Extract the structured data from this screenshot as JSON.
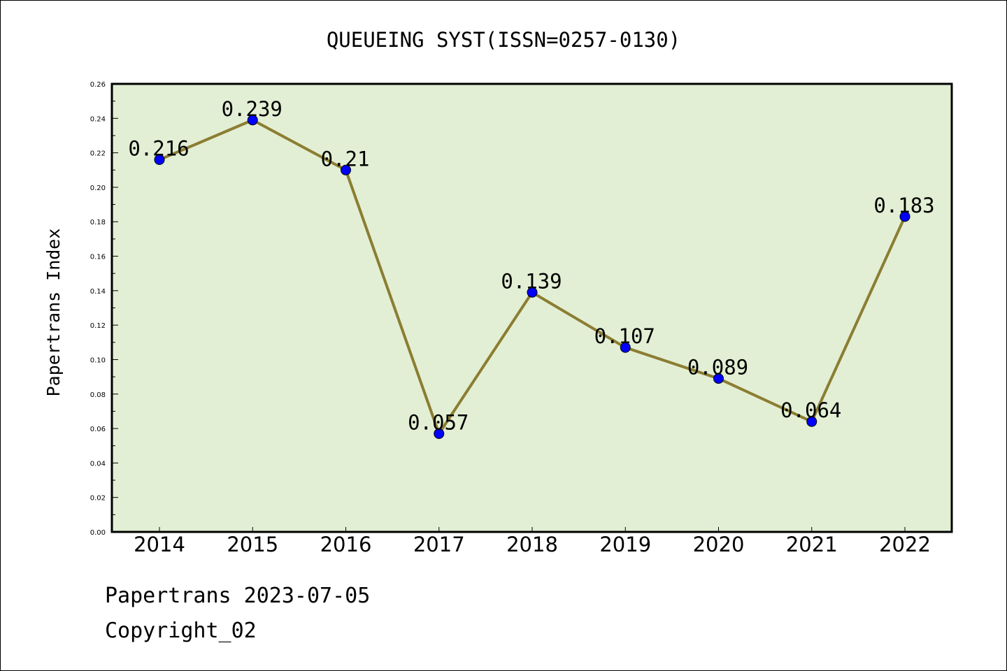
{
  "chart_data": {
    "type": "line",
    "title": "QUEUEING SYST(ISSN=0257-0130)",
    "xlabel": "",
    "ylabel": "Papertrans Index",
    "categories": [
      "2014",
      "2015",
      "2016",
      "2017",
      "2018",
      "2019",
      "2020",
      "2021",
      "2022"
    ],
    "series": [
      {
        "values": [
          0.216,
          0.239,
          0.21,
          0.057,
          0.139,
          0.107,
          0.089,
          0.064,
          0.183
        ]
      }
    ],
    "data_labels": [
      "0.216",
      "0.239",
      "0.21",
      "0.057",
      "0.139",
      "0.107",
      "0.089",
      "0.064",
      "0.183"
    ],
    "ylim": [
      0,
      0.26
    ],
    "yticks": [
      "0.00",
      "0.02",
      "0.04",
      "0.06",
      "0.08",
      "0.10",
      "0.12",
      "0.14",
      "0.16",
      "0.18",
      "0.20",
      "0.22",
      "0.24",
      "0.26"
    ],
    "grid": false,
    "legend": "none",
    "colors": {
      "plot_background": "#e2efd4",
      "line": "#8b7d32",
      "marker": "#0000ff"
    }
  },
  "footer": {
    "date_line": "Papertrans 2023-07-05",
    "copyright": "Copyright_02"
  }
}
